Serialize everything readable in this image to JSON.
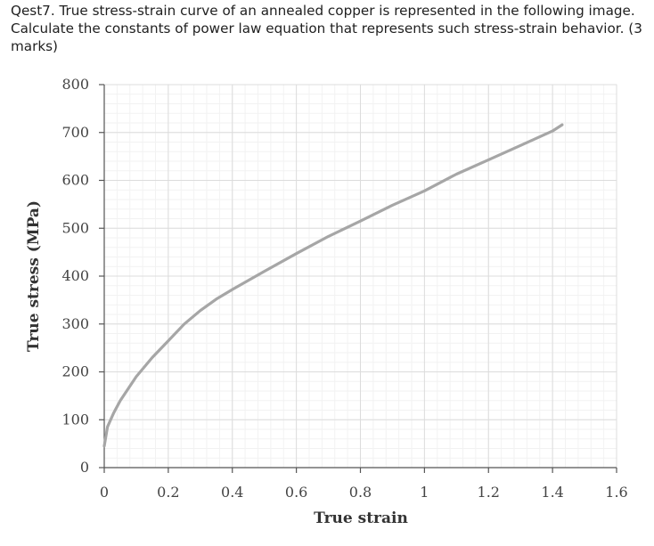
{
  "question": {
    "text": "Qest7. True stress-strain curve of an annealed copper is represented in the following image. Calculate the constants of power law equation that represents such stress-strain behavior. (3 marks)"
  },
  "chart_data": {
    "type": "line",
    "title": "",
    "xlabel": "True strain",
    "ylabel": "True stress (MPa)",
    "xlim": [
      0,
      1.6
    ],
    "ylim": [
      0,
      800
    ],
    "x_ticks": [
      0,
      0.2,
      0.4,
      0.6,
      0.8,
      1,
      1.2,
      1.4,
      1.6
    ],
    "x_tick_labels": [
      "0",
      "0.2",
      "0.4",
      "0.6",
      "0.8",
      "1",
      "1.2",
      "1.4",
      "1.6"
    ],
    "y_ticks": [
      0,
      100,
      200,
      300,
      400,
      500,
      600,
      700,
      800
    ],
    "y_tick_labels": [
      "0",
      "100",
      "200",
      "300",
      "400",
      "500",
      "600",
      "700",
      "800"
    ],
    "grid": true,
    "series": [
      {
        "name": "",
        "color": "#a6a6a6",
        "x": [
          0,
          0.01,
          0.03,
          0.05,
          0.1,
          0.15,
          0.2,
          0.25,
          0.3,
          0.35,
          0.4,
          0.5,
          0.6,
          0.7,
          0.8,
          0.9,
          1.0,
          1.1,
          1.2,
          1.3,
          1.4,
          1.43
        ],
        "y": [
          45,
          85,
          115,
          140,
          190,
          230,
          265,
          300,
          328,
          352,
          372,
          410,
          447,
          483,
          515,
          548,
          578,
          613,
          643,
          673,
          703,
          716
        ]
      }
    ]
  }
}
